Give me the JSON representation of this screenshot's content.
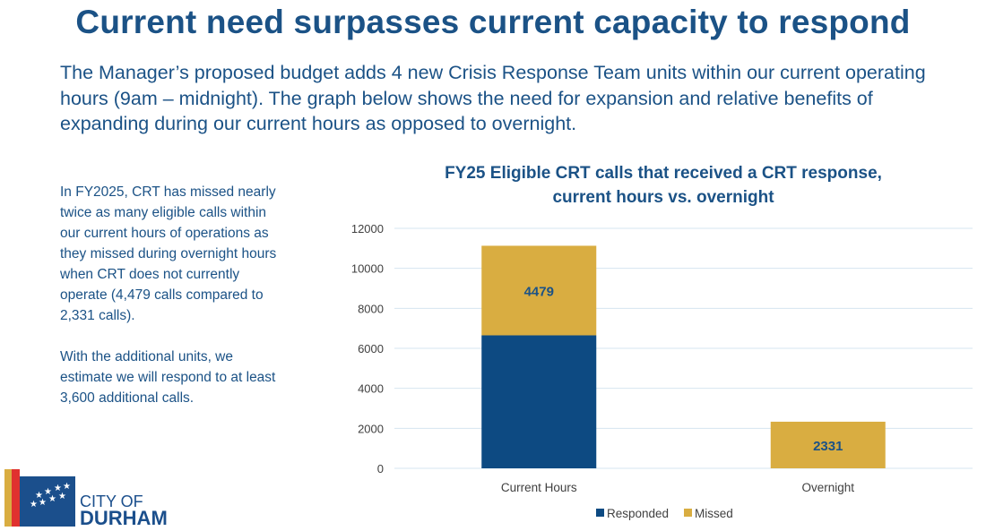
{
  "title": "Current need surpasses current capacity to respond",
  "intro": "The Manager’s proposed budget adds 4 new Crisis Response Team units within our current operating hours (9am – midnight).  The graph below shows the need for expansion and relative benefits of expanding during our current hours as opposed to overnight.",
  "sidebar": {
    "para1": "In FY2025, CRT has missed nearly twice as many eligible calls within our current hours of operations as they missed during overnight hours when CRT does not currently operate (4,479 calls compared to 2,331 calls).",
    "para2": "With the additional units, we estimate we will respond to at least 3,600 additional calls."
  },
  "logo": {
    "line1": "CITY OF",
    "line2": "DURHAM"
  },
  "colors": {
    "heading": "#1b5286",
    "responded": "#0d4a82",
    "missed": "#d9ad41",
    "grid": "#d6e4f0"
  },
  "chart_data": {
    "type": "bar",
    "stacked": true,
    "title_line1": "FY25 Eligible CRT calls that received a CRT response,",
    "title_line2": "current hours vs. overnight",
    "categories": [
      "Current Hours",
      "Overnight"
    ],
    "series": [
      {
        "name": "Responded",
        "values": [
          6650,
          0
        ],
        "labels": [
          "",
          ""
        ]
      },
      {
        "name": "Missed",
        "values": [
          4479,
          2331
        ],
        "labels": [
          "4479",
          "2331"
        ]
      }
    ],
    "yticks": [
      0,
      2000,
      4000,
      6000,
      8000,
      10000,
      12000
    ],
    "ylim": [
      0,
      12000
    ],
    "grid": true,
    "legend_position": "bottom"
  }
}
